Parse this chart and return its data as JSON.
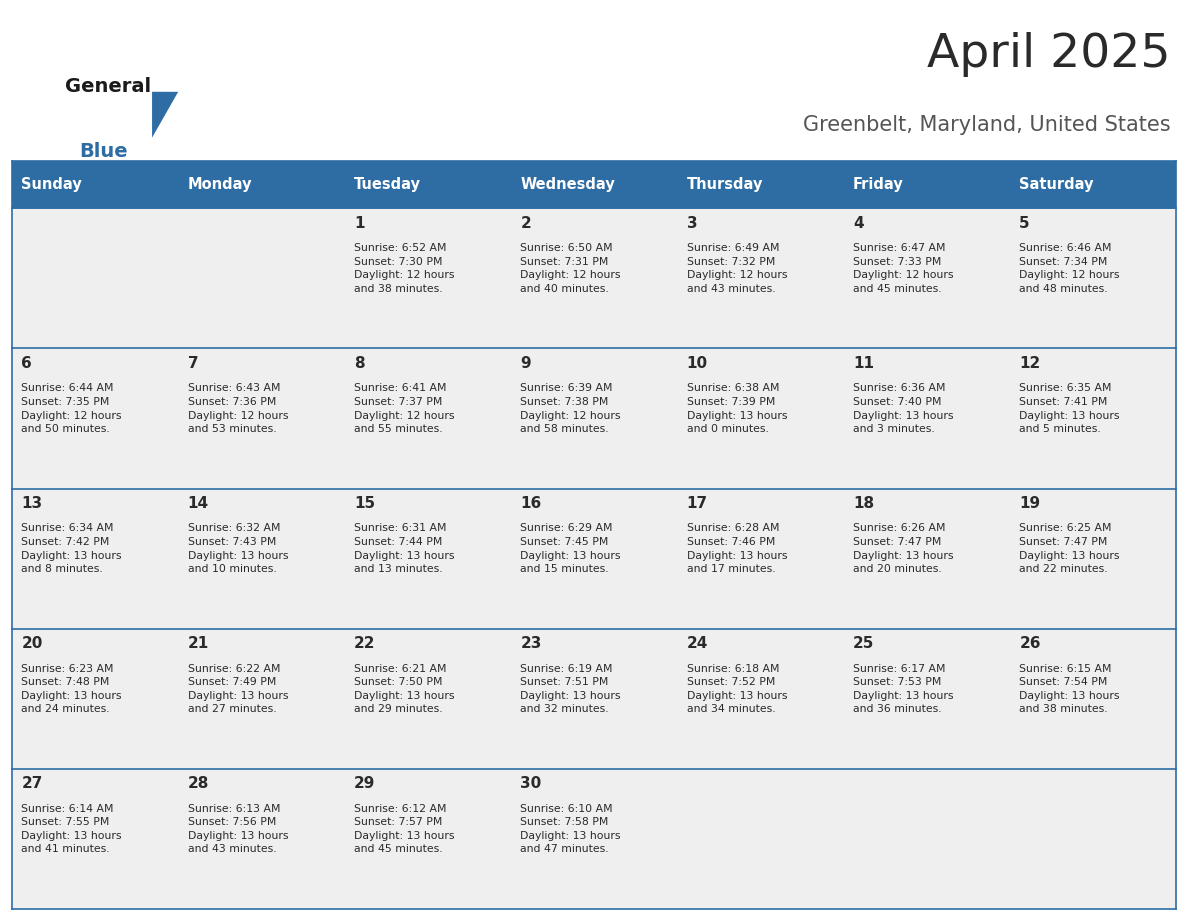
{
  "title": "April 2025",
  "subtitle": "Greenbelt, Maryland, United States",
  "header_bg_color": "#2E6DA4",
  "header_text_color": "#FFFFFF",
  "cell_bg_color": "#EFEFEF",
  "day_headers": [
    "Sunday",
    "Monday",
    "Tuesday",
    "Wednesday",
    "Thursday",
    "Friday",
    "Saturday"
  ],
  "title_color": "#2a2a2a",
  "subtitle_color": "#555555",
  "line_color": "#2E6DA4",
  "day_num_color": "#2a2a2a",
  "info_color": "#2a2a2a",
  "logo_general_color": "#1a1a1a",
  "logo_blue_color": "#2E6DA4",
  "logo_triangle_color": "#2E6DA4",
  "calendar_data": [
    [
      {
        "day": "",
        "info": ""
      },
      {
        "day": "",
        "info": ""
      },
      {
        "day": "1",
        "info": "Sunrise: 6:52 AM\nSunset: 7:30 PM\nDaylight: 12 hours\nand 38 minutes."
      },
      {
        "day": "2",
        "info": "Sunrise: 6:50 AM\nSunset: 7:31 PM\nDaylight: 12 hours\nand 40 minutes."
      },
      {
        "day": "3",
        "info": "Sunrise: 6:49 AM\nSunset: 7:32 PM\nDaylight: 12 hours\nand 43 minutes."
      },
      {
        "day": "4",
        "info": "Sunrise: 6:47 AM\nSunset: 7:33 PM\nDaylight: 12 hours\nand 45 minutes."
      },
      {
        "day": "5",
        "info": "Sunrise: 6:46 AM\nSunset: 7:34 PM\nDaylight: 12 hours\nand 48 minutes."
      }
    ],
    [
      {
        "day": "6",
        "info": "Sunrise: 6:44 AM\nSunset: 7:35 PM\nDaylight: 12 hours\nand 50 minutes."
      },
      {
        "day": "7",
        "info": "Sunrise: 6:43 AM\nSunset: 7:36 PM\nDaylight: 12 hours\nand 53 minutes."
      },
      {
        "day": "8",
        "info": "Sunrise: 6:41 AM\nSunset: 7:37 PM\nDaylight: 12 hours\nand 55 minutes."
      },
      {
        "day": "9",
        "info": "Sunrise: 6:39 AM\nSunset: 7:38 PM\nDaylight: 12 hours\nand 58 minutes."
      },
      {
        "day": "10",
        "info": "Sunrise: 6:38 AM\nSunset: 7:39 PM\nDaylight: 13 hours\nand 0 minutes."
      },
      {
        "day": "11",
        "info": "Sunrise: 6:36 AM\nSunset: 7:40 PM\nDaylight: 13 hours\nand 3 minutes."
      },
      {
        "day": "12",
        "info": "Sunrise: 6:35 AM\nSunset: 7:41 PM\nDaylight: 13 hours\nand 5 minutes."
      }
    ],
    [
      {
        "day": "13",
        "info": "Sunrise: 6:34 AM\nSunset: 7:42 PM\nDaylight: 13 hours\nand 8 minutes."
      },
      {
        "day": "14",
        "info": "Sunrise: 6:32 AM\nSunset: 7:43 PM\nDaylight: 13 hours\nand 10 minutes."
      },
      {
        "day": "15",
        "info": "Sunrise: 6:31 AM\nSunset: 7:44 PM\nDaylight: 13 hours\nand 13 minutes."
      },
      {
        "day": "16",
        "info": "Sunrise: 6:29 AM\nSunset: 7:45 PM\nDaylight: 13 hours\nand 15 minutes."
      },
      {
        "day": "17",
        "info": "Sunrise: 6:28 AM\nSunset: 7:46 PM\nDaylight: 13 hours\nand 17 minutes."
      },
      {
        "day": "18",
        "info": "Sunrise: 6:26 AM\nSunset: 7:47 PM\nDaylight: 13 hours\nand 20 minutes."
      },
      {
        "day": "19",
        "info": "Sunrise: 6:25 AM\nSunset: 7:47 PM\nDaylight: 13 hours\nand 22 minutes."
      }
    ],
    [
      {
        "day": "20",
        "info": "Sunrise: 6:23 AM\nSunset: 7:48 PM\nDaylight: 13 hours\nand 24 minutes."
      },
      {
        "day": "21",
        "info": "Sunrise: 6:22 AM\nSunset: 7:49 PM\nDaylight: 13 hours\nand 27 minutes."
      },
      {
        "day": "22",
        "info": "Sunrise: 6:21 AM\nSunset: 7:50 PM\nDaylight: 13 hours\nand 29 minutes."
      },
      {
        "day": "23",
        "info": "Sunrise: 6:19 AM\nSunset: 7:51 PM\nDaylight: 13 hours\nand 32 minutes."
      },
      {
        "day": "24",
        "info": "Sunrise: 6:18 AM\nSunset: 7:52 PM\nDaylight: 13 hours\nand 34 minutes."
      },
      {
        "day": "25",
        "info": "Sunrise: 6:17 AM\nSunset: 7:53 PM\nDaylight: 13 hours\nand 36 minutes."
      },
      {
        "day": "26",
        "info": "Sunrise: 6:15 AM\nSunset: 7:54 PM\nDaylight: 13 hours\nand 38 minutes."
      }
    ],
    [
      {
        "day": "27",
        "info": "Sunrise: 6:14 AM\nSunset: 7:55 PM\nDaylight: 13 hours\nand 41 minutes."
      },
      {
        "day": "28",
        "info": "Sunrise: 6:13 AM\nSunset: 7:56 PM\nDaylight: 13 hours\nand 43 minutes."
      },
      {
        "day": "29",
        "info": "Sunrise: 6:12 AM\nSunset: 7:57 PM\nDaylight: 13 hours\nand 45 minutes."
      },
      {
        "day": "30",
        "info": "Sunrise: 6:10 AM\nSunset: 7:58 PM\nDaylight: 13 hours\nand 47 minutes."
      },
      {
        "day": "",
        "info": ""
      },
      {
        "day": "",
        "info": ""
      },
      {
        "day": "",
        "info": ""
      }
    ]
  ]
}
